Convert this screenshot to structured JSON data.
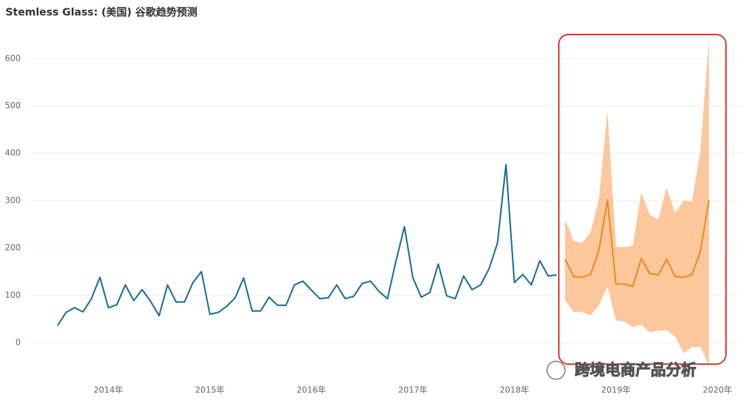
{
  "chart_data": {
    "type": "line",
    "title": "Stemless Glass: (美国) 谷歌趋势预测",
    "watermark": "跨境电商产品分析",
    "xlim": [
      2013.3,
      2020.2
    ],
    "xticks": [
      {
        "value": 2014,
        "label": "2014年"
      },
      {
        "value": 2015,
        "label": "2015年"
      },
      {
        "value": 2016,
        "label": "2016年"
      },
      {
        "value": 2017,
        "label": "2017年"
      },
      {
        "value": 2018,
        "label": "2018年"
      },
      {
        "value": 2019,
        "label": "2019年"
      },
      {
        "value": 2020,
        "label": "2020年"
      }
    ],
    "ylim": [
      -70,
      660
    ],
    "yticks": [
      0,
      100,
      200,
      300,
      400,
      500,
      600
    ],
    "grid": true,
    "series": [
      {
        "color": "#1f6f95",
        "x": [
          2013.5,
          2013.583,
          2013.667,
          2013.75,
          2013.833,
          2013.917,
          2014,
          2014.083,
          2014.167,
          2014.25,
          2014.333,
          2014.417,
          2014.5,
          2014.583,
          2014.667,
          2014.75,
          2014.833,
          2014.917,
          2015,
          2015.083,
          2015.167,
          2015.25,
          2015.333,
          2015.417,
          2015.5,
          2015.583,
          2015.667,
          2015.75,
          2015.833,
          2015.917,
          2016,
          2016.083,
          2016.167,
          2016.25,
          2016.333,
          2016.417,
          2016.5,
          2016.583,
          2016.667,
          2016.75,
          2016.833,
          2016.917,
          2017,
          2017.083,
          2017.167,
          2017.25,
          2017.333,
          2017.417,
          2017.5,
          2017.583,
          2017.667,
          2017.75,
          2017.833,
          2017.917,
          2018,
          2018.083,
          2018.167,
          2018.25,
          2018.333,
          2018.417
        ],
        "values": [
          36,
          64,
          74,
          65,
          93,
          138,
          74,
          80,
          122,
          89,
          112,
          87,
          57,
          122,
          86,
          86,
          127,
          150,
          60,
          64,
          77,
          95,
          137,
          67,
          67,
          96,
          79,
          79,
          122,
          130,
          111,
          93,
          95,
          122,
          93,
          98,
          125,
          130,
          108,
          93,
          172,
          245,
          137,
          96,
          106,
          166,
          99,
          93,
          141,
          112,
          122,
          156,
          210,
          376,
          127,
          144,
          122,
          173,
          141,
          143
        ]
      },
      {
        "color": "#ee8a22",
        "band_color": "#fcc79b",
        "x": [
          2018.5,
          2018.583,
          2018.667,
          2018.75,
          2018.833,
          2018.917,
          2019,
          2019.083,
          2019.167,
          2019.25,
          2019.333,
          2019.417,
          2019.5,
          2019.583,
          2019.667,
          2019.75,
          2019.833,
          2019.917
        ],
        "values": [
          176,
          140,
          138,
          144,
          195,
          301,
          124,
          124,
          119,
          178,
          146,
          143,
          176,
          140,
          138,
          144,
          193,
          301
        ],
        "lower": [
          90,
          65,
          65,
          58,
          79,
          119,
          47,
          45,
          33,
          38,
          22,
          26,
          26,
          13,
          -22,
          -9,
          -9,
          -48
        ],
        "upper": [
          260,
          215,
          210,
          233,
          304,
          490,
          202,
          202,
          205,
          317,
          271,
          260,
          327,
          274,
          300,
          298,
          406,
          643
        ]
      }
    ]
  }
}
